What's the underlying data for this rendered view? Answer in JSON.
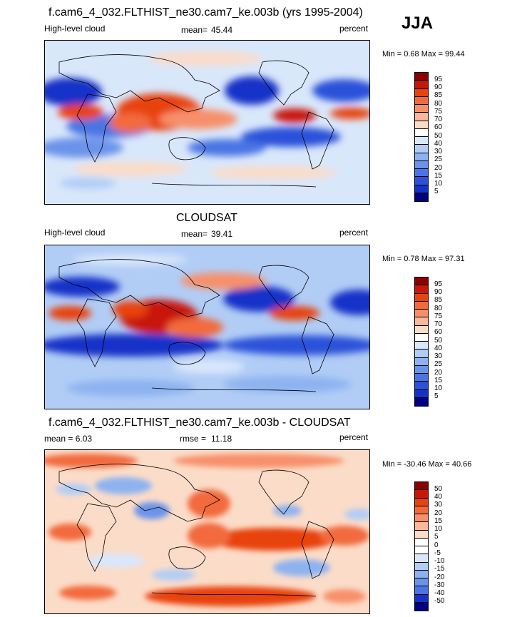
{
  "header": {
    "title": "f.cam6_4_032.FLTHIST_ne30.cam7_ke.003b (yrs 1995-2004)",
    "season": "JJA"
  },
  "panels": [
    {
      "id": "model",
      "title": "",
      "left_label": "High-level cloud",
      "stat_label": "mean=",
      "stat_value": "45.44",
      "units": "percent",
      "minmax": "Min =   0.68 Max =  99.44",
      "colorbar": {
        "labels": [
          "95",
          "90",
          "85",
          "80",
          "75",
          "70",
          "60",
          "50",
          "40",
          "30",
          "25",
          "20",
          "15",
          "10",
          "5"
        ],
        "colors": [
          "#8b0000",
          "#c8160a",
          "#e8420f",
          "#f26a3c",
          "#f7906a",
          "#fab799",
          "#fbdcc8",
          "#ffffff",
          "#d9e7fb",
          "#b1cdf6",
          "#8db2f0",
          "#6a93ea",
          "#4a74e3",
          "#2c51d9",
          "#1532c8",
          "#000080"
        ]
      }
    },
    {
      "id": "obs",
      "title": "CLOUDSAT",
      "left_label": "High-level cloud",
      "stat_label": "mean=",
      "stat_value": "39.41",
      "units": "percent",
      "minmax": "Min =   0.78 Max =  97.31",
      "colorbar": {
        "labels": [
          "95",
          "90",
          "85",
          "80",
          "75",
          "70",
          "60",
          "50",
          "40",
          "30",
          "25",
          "20",
          "15",
          "10",
          "5"
        ],
        "colors": [
          "#8b0000",
          "#c8160a",
          "#e8420f",
          "#f26a3c",
          "#f7906a",
          "#fab799",
          "#fbdcc8",
          "#ffffff",
          "#d9e7fb",
          "#b1cdf6",
          "#8db2f0",
          "#6a93ea",
          "#4a74e3",
          "#2c51d9",
          "#1532c8",
          "#000080"
        ]
      }
    },
    {
      "id": "diff",
      "title": "f.cam6_4_032.FLTHIST_ne30.cam7_ke.003b - CLOUDSAT",
      "left_label": "mean =   6.03",
      "stat_label": "rmse =",
      "stat_value": "11.18",
      "units": "percent",
      "minmax": "Min = -30.46 Max =  40.66",
      "colorbar": {
        "labels": [
          "50",
          "40",
          "30",
          "20",
          "15",
          "10",
          "5",
          "0",
          "-5",
          "-10",
          "-15",
          "-20",
          "-30",
          "-40",
          "-50"
        ],
        "colors": [
          "#8b0000",
          "#c8160a",
          "#e8420f",
          "#f26a3c",
          "#f7906a",
          "#fab799",
          "#fbdcc8",
          "#ffffff",
          "#ffffff",
          "#d9e7fb",
          "#b1cdf6",
          "#8db2f0",
          "#6a93ea",
          "#4a74e3",
          "#1532c8",
          "#000080"
        ]
      }
    }
  ]
}
